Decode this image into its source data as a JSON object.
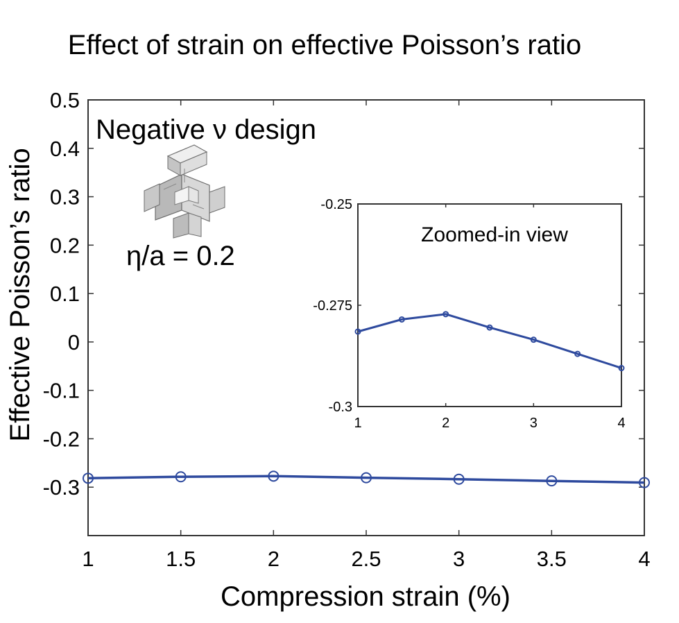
{
  "chart_data": {
    "type": "line",
    "title": "Effect of strain on effective Poisson’s ratio",
    "xlabel": "Compression strain (%)",
    "ylabel": "Effective Poisson’s ratio",
    "xlim": [
      1,
      4
    ],
    "ylim": [
      -0.4,
      0.5
    ],
    "x_ticks": [
      1,
      1.5,
      2,
      2.5,
      3,
      3.5,
      4
    ],
    "x_tick_labels": [
      "1",
      "1.5",
      "2",
      "2.5",
      "3",
      "3.5",
      "4"
    ],
    "y_ticks": [
      0.5,
      0.4,
      0.3,
      0.2,
      0.1,
      0,
      -0.1,
      -0.2,
      -0.3
    ],
    "y_tick_labels": [
      "0.5",
      "0.4",
      "0.3",
      "0.2",
      "0.1",
      "0",
      "-0.1",
      "-0.2",
      "-0.3"
    ],
    "grid": false,
    "series": [
      {
        "color": "#2e4a9e",
        "marker": "circle",
        "x": [
          1,
          1.5,
          2,
          2.5,
          3,
          3.5,
          4
        ],
        "y": [
          -0.2815,
          -0.2785,
          -0.2772,
          -0.2805,
          -0.2835,
          -0.287,
          -0.2905
        ]
      }
    ],
    "annotations": {
      "design_label": "Negative ν design",
      "ratio_label": "η/a = 0.2"
    },
    "inset": {
      "title": "Zoomed-in view",
      "xlim": [
        1,
        4
      ],
      "ylim": [
        -0.3,
        -0.25
      ],
      "x_ticks": [
        1,
        2,
        3,
        4
      ],
      "x_tick_labels": [
        "1",
        "2",
        "3",
        "4"
      ],
      "y_ticks": [
        -0.25,
        -0.275,
        -0.3
      ],
      "y_tick_labels": [
        "-0.25",
        "-0.275",
        "-0.3"
      ]
    }
  }
}
